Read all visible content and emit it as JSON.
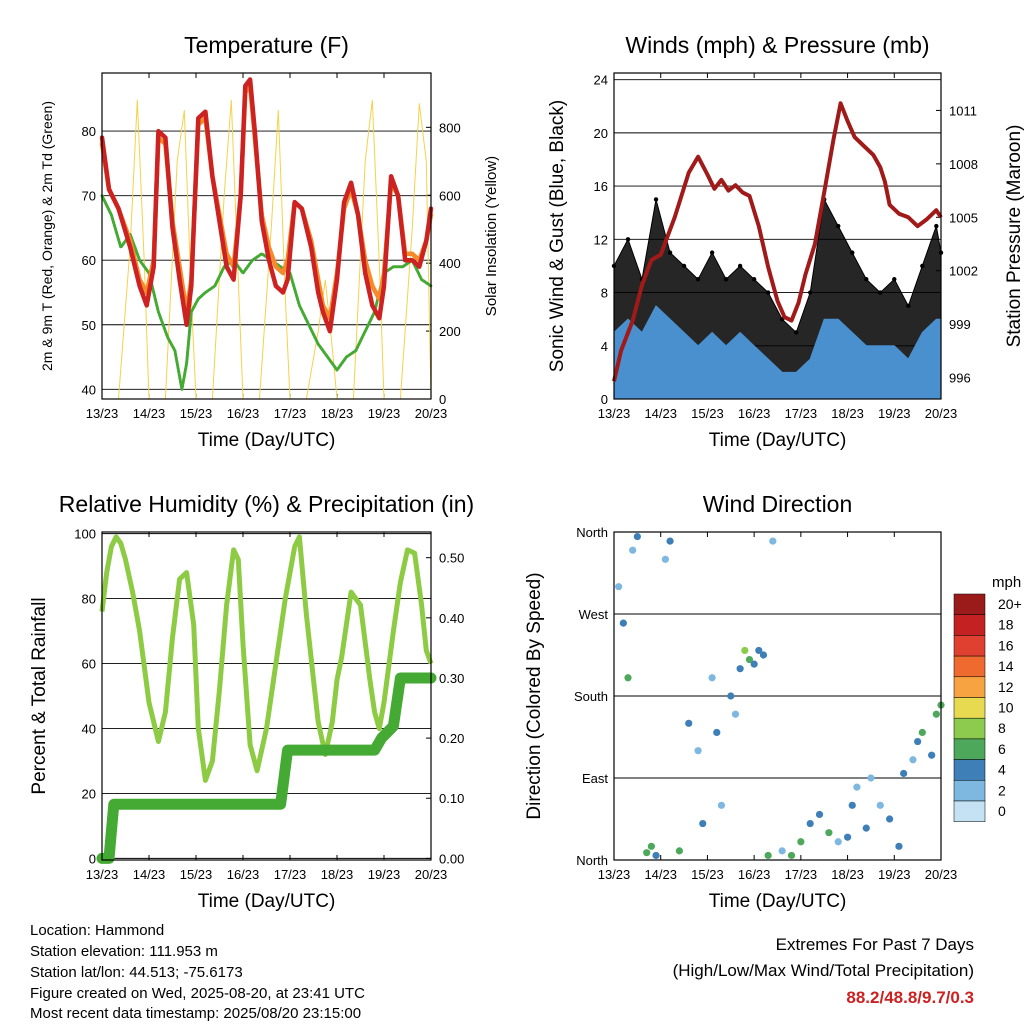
{
  "info": {
    "location": "Location: Hammond",
    "elevation": "Station elevation: 111.953 m",
    "latlon": "Station lat/lon: 44.513; -75.6173",
    "created": "Figure created on Wed, 2025-08-20, at 23:41 UTC",
    "recent": "Most recent data timestamp: 2025/08/20 23:15:00"
  },
  "extremes": {
    "title": "Extremes For Past 7 Days",
    "subtitle": "(High/Low/Max Wind/Total Precipitation)",
    "values": "88.2/48.8/9.7/0.3"
  },
  "colors": {
    "t2m": "#cc2222",
    "t9m": "#f58a2a",
    "td": "#44aa33",
    "solar": "#f4d24a",
    "gust": "#000000",
    "wind": "#4a90cf",
    "pressure": "#a11a1a",
    "rh": "#8ecb44",
    "precip": "#44aa33"
  },
  "chart_data": [
    {
      "id": "temperature",
      "type": "line",
      "title": "Temperature (F)",
      "xlabel": "Time (Day/UTC)",
      "ylabel": "2m & 9m T (Red, Orange) & 2m Td (Green)",
      "y2label": "Solar Insolation (Yellow)",
      "x_ticks": [
        "13/23",
        "14/23",
        "15/23",
        "16/23",
        "17/23",
        "18/23",
        "19/23",
        "20/23"
      ],
      "xlim": [
        0,
        7
      ],
      "ylim": [
        38.5,
        89
      ],
      "y_ticks": [
        40,
        50,
        60,
        70,
        80
      ],
      "y2lim": [
        0,
        960
      ],
      "y2_ticks": [
        0,
        200,
        400,
        600,
        800
      ],
      "grid": true,
      "series": [
        {
          "name": "2m T",
          "axis": "left",
          "color": "#cc2222",
          "x": [
            0,
            0.15,
            0.35,
            0.6,
            0.8,
            0.95,
            1.1,
            1.2,
            1.35,
            1.5,
            1.65,
            1.8,
            1.9,
            2.05,
            2.2,
            2.35,
            2.5,
            2.65,
            2.8,
            2.95,
            3.05,
            3.15,
            3.25,
            3.4,
            3.55,
            3.7,
            3.85,
            3.95,
            4.1,
            4.25,
            4.45,
            4.6,
            4.7,
            4.85,
            5.0,
            5.15,
            5.3,
            5.45,
            5.6,
            5.75,
            5.9,
            6.0,
            6.15,
            6.3,
            6.45,
            6.6,
            6.75,
            6.9,
            7.0
          ],
          "y": [
            79,
            71,
            68,
            62,
            56,
            53,
            59,
            80,
            79,
            65,
            57,
            50,
            56,
            82,
            83,
            73,
            66,
            59,
            57,
            70,
            87,
            88,
            80,
            66,
            60,
            56,
            55,
            57,
            69,
            68,
            62,
            55,
            52,
            49,
            57,
            69,
            72,
            67,
            58,
            53,
            51,
            56,
            73,
            70,
            60,
            60,
            59,
            63,
            68
          ]
        },
        {
          "name": "9m T",
          "axis": "left",
          "color": "#f58a2a",
          "x": [
            0,
            0.15,
            0.35,
            0.6,
            0.8,
            0.95,
            1.1,
            1.2,
            1.35,
            1.5,
            1.65,
            1.8,
            1.9,
            2.05,
            2.2,
            2.35,
            2.5,
            2.65,
            2.8,
            2.95,
            3.05,
            3.15,
            3.25,
            3.4,
            3.55,
            3.7,
            3.85,
            3.95,
            4.1,
            4.25,
            4.45,
            4.6,
            4.7,
            4.85,
            5.0,
            5.15,
            5.3,
            5.45,
            5.6,
            5.75,
            5.9,
            6.0,
            6.15,
            6.3,
            6.45,
            6.6,
            6.75,
            6.9,
            7.0
          ],
          "y": [
            78,
            71,
            68,
            63,
            57,
            55,
            60,
            79,
            78,
            66,
            59,
            52,
            57,
            81,
            82,
            73,
            67,
            61,
            59,
            70,
            86,
            87,
            79,
            67,
            62,
            59,
            58,
            60,
            69,
            68,
            63,
            57,
            53,
            51,
            58,
            68,
            71,
            67,
            60,
            56,
            54,
            58,
            72,
            70,
            61,
            61,
            60,
            63,
            67
          ]
        },
        {
          "name": "2m Td",
          "axis": "left",
          "color": "#44aa33",
          "x": [
            0,
            0.2,
            0.4,
            0.6,
            0.8,
            1.0,
            1.2,
            1.4,
            1.55,
            1.7,
            1.8,
            1.9,
            2.05,
            2.2,
            2.4,
            2.6,
            2.8,
            3.0,
            3.2,
            3.4,
            3.6,
            3.8,
            4.0,
            4.2,
            4.4,
            4.6,
            4.8,
            5.0,
            5.2,
            5.4,
            5.6,
            5.8,
            6.0,
            6.2,
            6.4,
            6.6,
            6.8,
            7.0
          ],
          "y": [
            70,
            67,
            62,
            64,
            60,
            58,
            52,
            48,
            46,
            40,
            44,
            52,
            54,
            55,
            56,
            59,
            60,
            58,
            60,
            61,
            60,
            59,
            58,
            53,
            50,
            47,
            45,
            43,
            45,
            46,
            49,
            52,
            58,
            59,
            59,
            60,
            57,
            56
          ]
        },
        {
          "name": "Solar",
          "axis": "right",
          "color": "#f4d24a",
          "x": [
            0,
            0.35,
            0.6,
            0.75,
            0.9,
            1.0,
            1.35,
            1.6,
            1.75,
            1.9,
            2.0,
            2.35,
            2.6,
            2.75,
            2.9,
            3.0,
            3.35,
            3.6,
            3.75,
            3.9,
            4.0,
            4.35,
            4.6,
            4.75,
            4.9,
            5.0,
            5.35,
            5.6,
            5.75,
            5.9,
            6.0,
            6.35,
            6.6,
            6.75,
            6.9,
            7.0
          ],
          "y": [
            0,
            0,
            450,
            880,
            400,
            0,
            0,
            700,
            850,
            300,
            0,
            0,
            600,
            880,
            350,
            0,
            0,
            500,
            850,
            300,
            0,
            0,
            200,
            350,
            150,
            0,
            0,
            700,
            880,
            400,
            0,
            0,
            500,
            870,
            700,
            0
          ]
        }
      ]
    },
    {
      "id": "winds",
      "type": "scatter",
      "title": "Winds (mph) & Pressure (mb)",
      "xlabel": "Time (Day/UTC)",
      "ylabel": "Sonic Wind & Gust (Blue, Black)",
      "y2label": "Station Pressure (Maroon)",
      "x_ticks": [
        "13/23",
        "14/23",
        "15/23",
        "16/23",
        "17/23",
        "18/23",
        "19/23",
        "20/23"
      ],
      "xlim": [
        0,
        7
      ],
      "ylim": [
        0,
        24.5
      ],
      "y_ticks": [
        0,
        4,
        8,
        12,
        16,
        20,
        24
      ],
      "y2lim": [
        994.8,
        1013.1
      ],
      "y2_ticks": [
        996,
        999,
        1002,
        1005,
        1008,
        1011
      ],
      "grid": true,
      "series": [
        {
          "name": "Gust",
          "axis": "left",
          "color": "#000000",
          "x": [
            0,
            0.3,
            0.6,
            0.9,
            1.2,
            1.5,
            1.8,
            2.1,
            2.4,
            2.7,
            3.0,
            3.3,
            3.6,
            3.9,
            4.2,
            4.5,
            4.8,
            5.1,
            5.4,
            5.7,
            6.0,
            6.3,
            6.6,
            6.9,
            7.0
          ],
          "y": [
            10,
            12,
            9,
            15,
            11,
            10,
            9,
            11,
            9,
            10,
            9,
            8,
            6,
            5,
            8,
            15,
            13,
            11,
            9,
            8,
            9,
            7,
            10,
            13,
            11
          ]
        },
        {
          "name": "Sonic Wind",
          "axis": "left",
          "color": "#4a90cf",
          "x": [
            0,
            0.3,
            0.6,
            0.9,
            1.2,
            1.5,
            1.8,
            2.1,
            2.4,
            2.7,
            3.0,
            3.3,
            3.6,
            3.9,
            4.2,
            4.5,
            4.8,
            5.1,
            5.4,
            5.7,
            6.0,
            6.3,
            6.6,
            6.9,
            7.0
          ],
          "y": [
            5,
            6,
            5,
            7,
            6,
            5,
            4,
            5,
            4,
            5,
            4,
            3,
            2,
            2,
            3,
            6,
            6,
            5,
            4,
            4,
            4,
            3,
            5,
            6,
            6
          ]
        },
        {
          "name": "Station Pressure",
          "axis": "right",
          "color": "#a11a1a",
          "x": [
            0,
            0.15,
            0.4,
            0.6,
            0.8,
            1.0,
            1.3,
            1.6,
            1.8,
            2.0,
            2.15,
            2.3,
            2.45,
            2.6,
            2.75,
            2.9,
            3.1,
            3.3,
            3.5,
            3.65,
            3.8,
            3.95,
            4.1,
            4.3,
            4.5,
            4.7,
            4.85,
            5.0,
            5.15,
            5.35,
            5.55,
            5.7,
            5.8,
            5.9,
            6.1,
            6.3,
            6.5,
            6.7,
            6.9,
            7.0
          ],
          "y": [
            995.8,
            997.5,
            999.2,
            1001.2,
            1002.6,
            1002.9,
            1005,
            1007.5,
            1008.4,
            1007.4,
            1006.6,
            1007.1,
            1006.5,
            1006.8,
            1006.4,
            1006.2,
            1004.5,
            1002.2,
            1000.3,
            999.4,
            999.2,
            1000.2,
            1001.8,
            1003.5,
            1006.4,
            1009.4,
            1011.4,
            1010.4,
            1009.5,
            1009,
            1008.5,
            1007.8,
            1007,
            1005.7,
            1005.2,
            1005,
            1004.5,
            1004.9,
            1005.4,
            1005
          ]
        }
      ]
    },
    {
      "id": "humidity",
      "type": "line",
      "title": "Relative Humidity (%) & Precipitation (in)",
      "xlabel": "Time (Day/UTC)",
      "ylabel": "Percent & Total Rainfall",
      "x_ticks": [
        "13/23",
        "14/23",
        "15/23",
        "16/23",
        "17/23",
        "18/23",
        "19/23",
        "20/23"
      ],
      "xlim": [
        0,
        7
      ],
      "ylim": [
        -0.5,
        100.5
      ],
      "y_ticks": [
        0,
        20,
        40,
        60,
        80,
        100
      ],
      "y2lim": [
        -0.0027,
        0.5427
      ],
      "y2_ticks": [
        "0.00",
        "0.10",
        "0.20",
        "0.30",
        "0.40",
        "0.50"
      ],
      "grid": true,
      "series": [
        {
          "name": "RH",
          "axis": "left",
          "color": "#8ecb44",
          "x": [
            0,
            0.1,
            0.2,
            0.3,
            0.4,
            0.5,
            0.65,
            0.8,
            1.0,
            1.2,
            1.35,
            1.5,
            1.65,
            1.8,
            1.95,
            2.05,
            2.2,
            2.35,
            2.5,
            2.65,
            2.8,
            2.9,
            3.0,
            3.15,
            3.3,
            3.5,
            3.7,
            3.9,
            4.1,
            4.2,
            4.35,
            4.5,
            4.6,
            4.75,
            4.9,
            5.0,
            5.1,
            5.3,
            5.5,
            5.7,
            5.8,
            5.9,
            6.0,
            6.2,
            6.35,
            6.5,
            6.65,
            6.8,
            6.9,
            7.0
          ],
          "y": [
            76,
            88,
            96,
            99,
            97,
            92,
            82,
            70,
            48,
            36,
            45,
            68,
            86,
            88,
            72,
            40,
            24,
            30,
            52,
            78,
            95,
            92,
            66,
            35,
            27,
            40,
            60,
            80,
            96,
            99,
            75,
            55,
            42,
            32,
            42,
            55,
            62,
            82,
            78,
            55,
            45,
            40,
            48,
            70,
            85,
            95,
            94,
            78,
            64,
            60
          ]
        },
        {
          "name": "Precipitation",
          "axis": "right",
          "color": "#44aa33",
          "x": [
            0,
            0.15,
            0.25,
            2.0,
            3.8,
            3.95,
            4.6,
            5.8,
            5.95,
            6.2,
            6.35,
            7.0
          ],
          "y": [
            0,
            0,
            0.09,
            0.09,
            0.09,
            0.18,
            0.18,
            0.18,
            0.2,
            0.22,
            0.3,
            0.3
          ]
        }
      ]
    },
    {
      "id": "direction",
      "type": "scatter",
      "title": "Wind Direction",
      "xlabel": "Time (Day/UTC)",
      "ylabel": "Direction (Colored By Speed)",
      "x_ticks": [
        "13/23",
        "14/23",
        "15/23",
        "16/23",
        "17/23",
        "18/23",
        "19/23",
        "20/23"
      ],
      "xlim": [
        0,
        7
      ],
      "ylim": [
        0,
        360
      ],
      "y_ticks": [
        "North",
        "East",
        "South",
        "West",
        "North"
      ],
      "grid": true,
      "colorbar": {
        "title": "mph",
        "labels": [
          "20+",
          "18",
          "16",
          "14",
          "12",
          "10",
          "8",
          "6",
          "4",
          "2",
          "0"
        ],
        "colors": [
          "#9b1b1b",
          "#c42222",
          "#e04030",
          "#ef6a2e",
          "#f7a341",
          "#e8da50",
          "#8ccb4e",
          "#4ea85b",
          "#3e7fb8",
          "#7eb8e0",
          "#c4e2f4"
        ]
      },
      "series": [
        {
          "name": "Direction",
          "x": [
            0.1,
            0.2,
            0.3,
            0.4,
            0.5,
            0.7,
            0.8,
            0.9,
            1.1,
            1.2,
            1.4,
            1.6,
            1.8,
            1.9,
            2.1,
            2.2,
            2.3,
            2.5,
            2.6,
            2.7,
            2.8,
            2.9,
            3.0,
            3.1,
            3.2,
            3.3,
            3.4,
            3.6,
            3.8,
            4.0,
            4.2,
            4.4,
            4.6,
            4.8,
            5.0,
            5.1,
            5.2,
            5.4,
            5.5,
            5.7,
            5.9,
            6.1,
            6.2,
            6.4,
            6.5,
            6.6,
            6.8,
            6.9,
            7.0
          ],
          "y": [
            300,
            260,
            200,
            340,
            355,
            8,
            15,
            5,
            330,
            350,
            10,
            150,
            120,
            40,
            200,
            140,
            60,
            180,
            160,
            210,
            230,
            220,
            215,
            230,
            225,
            5,
            350,
            10,
            5,
            20,
            40,
            50,
            30,
            20,
            25,
            60,
            80,
            35,
            90,
            60,
            45,
            15,
            95,
            110,
            130,
            140,
            115,
            160,
            170
          ],
          "speed": [
            3,
            5,
            6,
            2,
            4,
            6,
            7,
            5,
            3,
            4,
            6,
            4,
            2,
            5,
            3,
            4,
            2,
            5,
            3,
            4,
            8,
            6,
            5,
            4,
            5,
            6,
            3,
            2,
            6,
            7,
            5,
            4,
            6,
            3,
            4,
            5,
            3,
            4,
            2,
            3,
            4,
            5,
            4,
            3,
            5,
            6,
            4,
            6,
            7
          ]
        }
      ]
    }
  ]
}
